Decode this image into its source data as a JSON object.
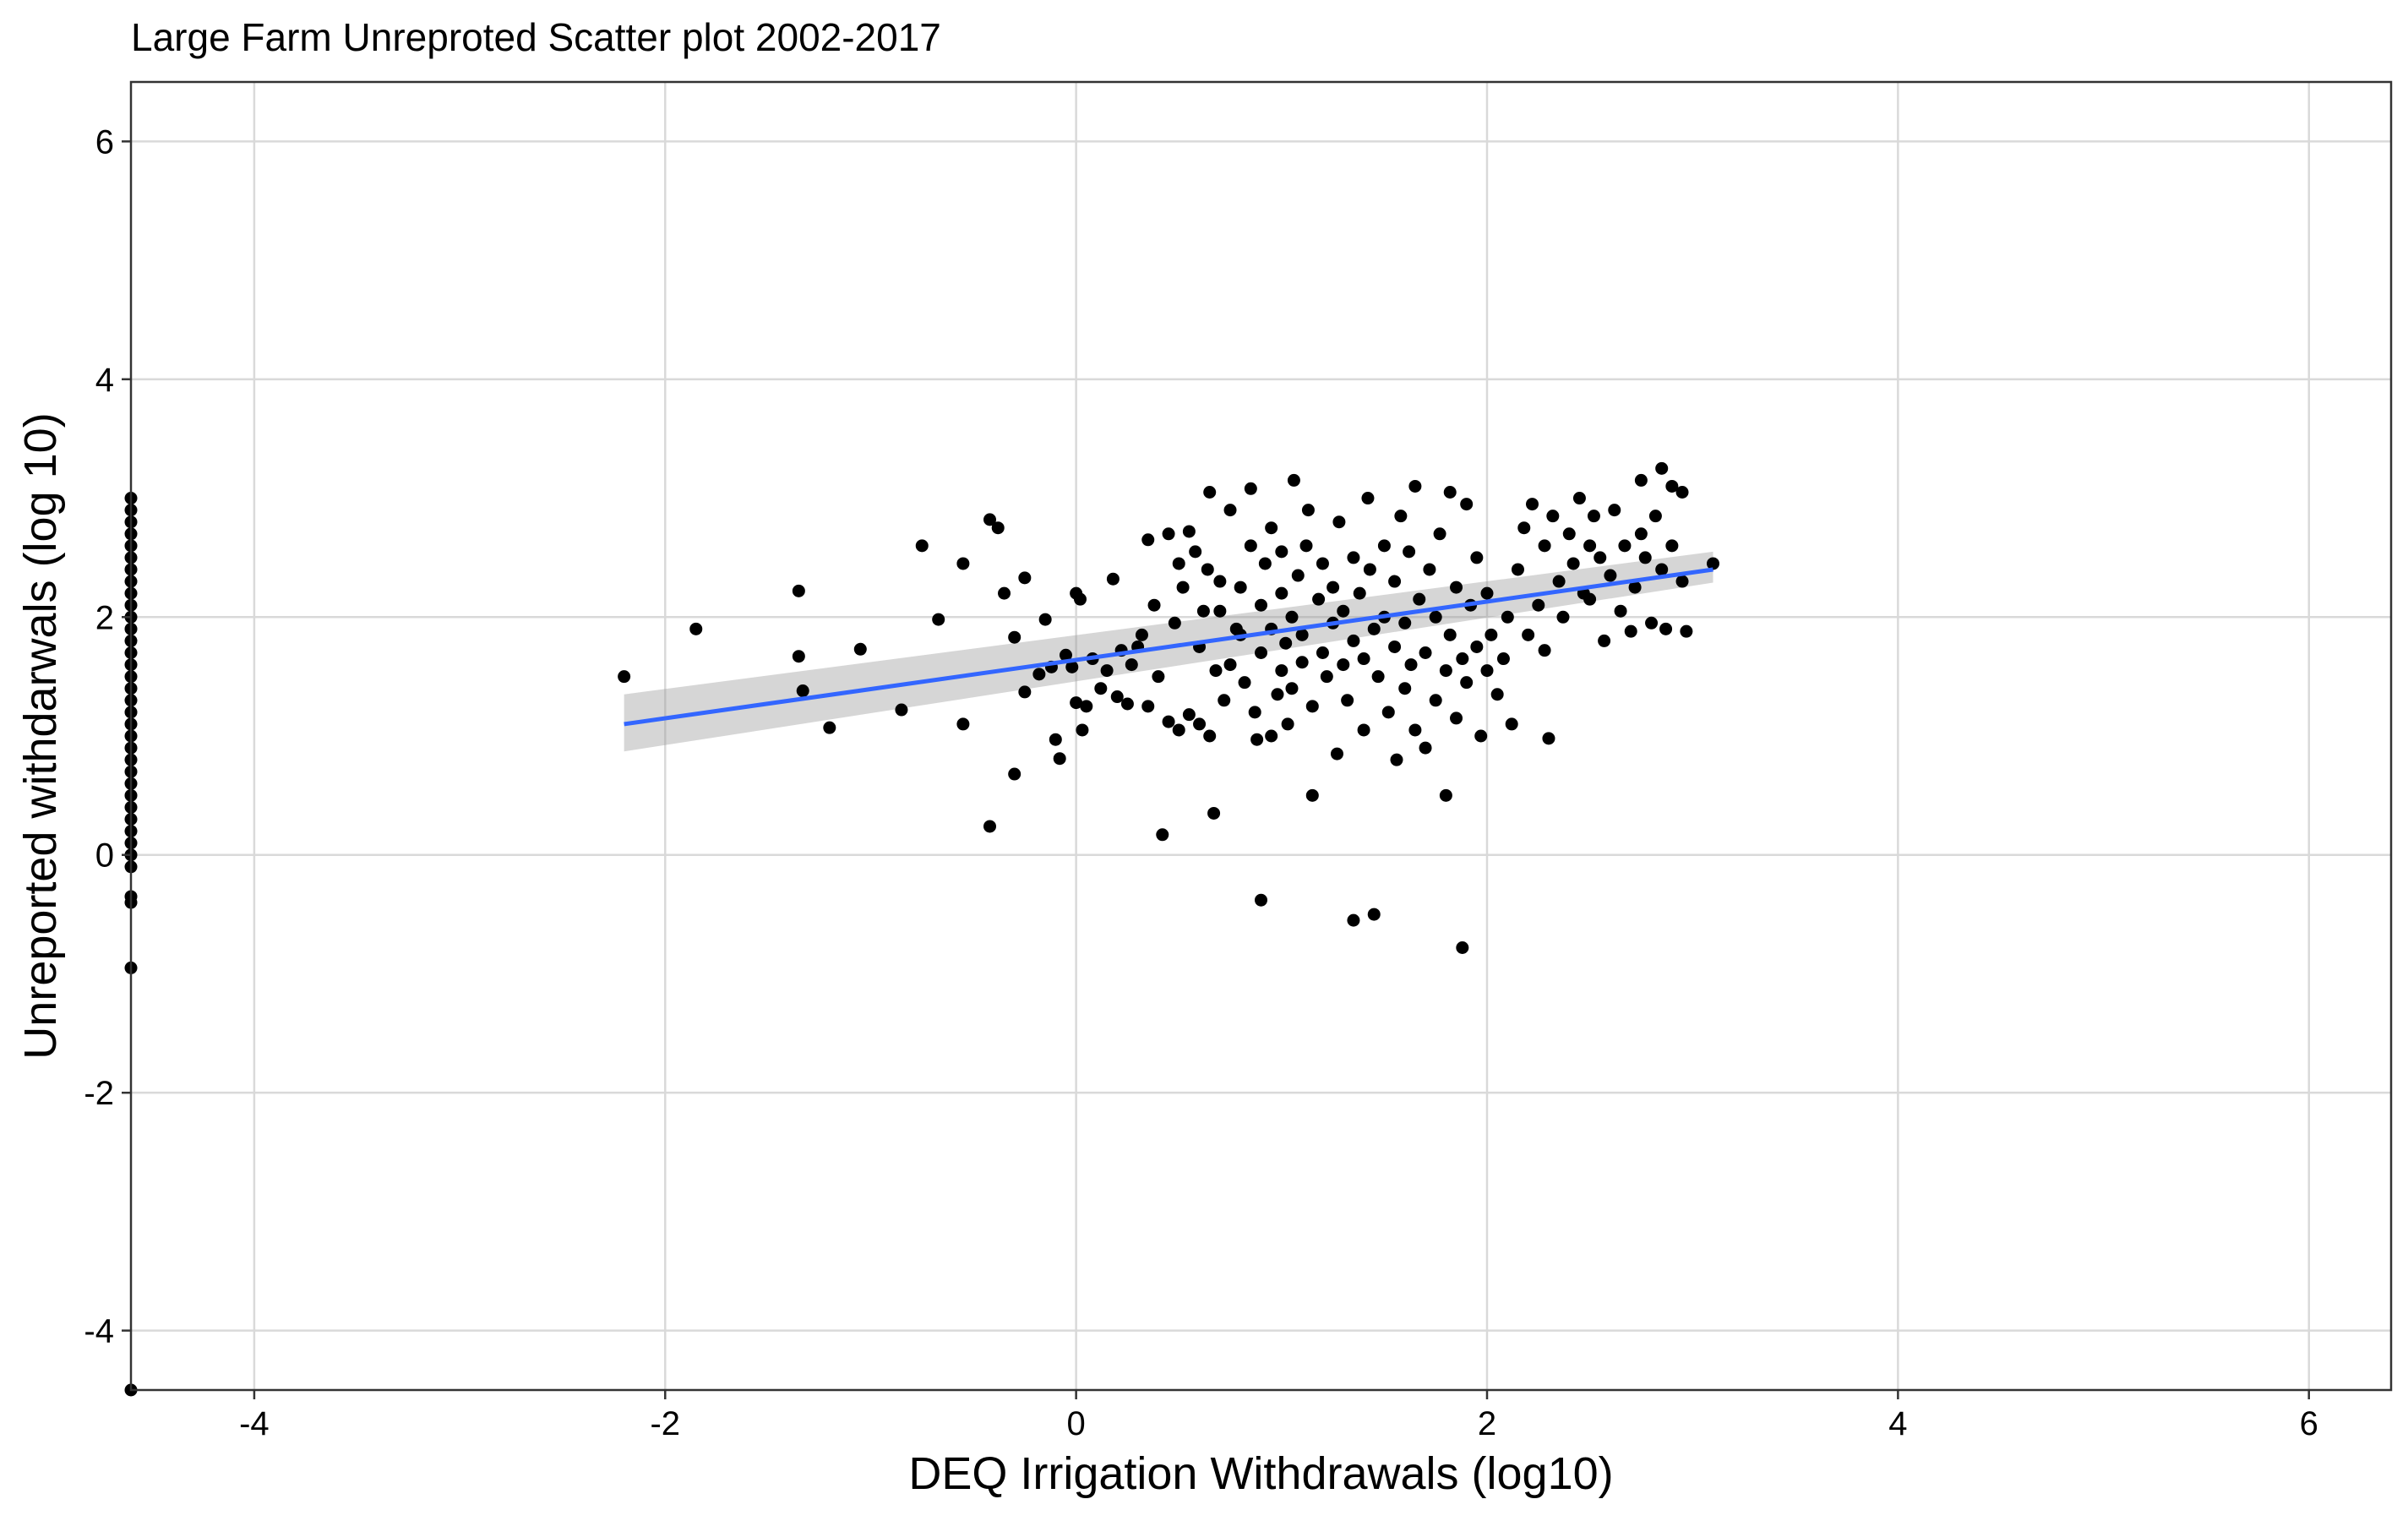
{
  "chart_data": {
    "type": "scatter",
    "title": "Large Farm Unreproted Scatter plot 2002-2017",
    "xlabel": "DEQ Irrigation Withdrawals (log10)",
    "ylabel": "Unreported withdarwals (log 10)",
    "xlim": [
      -4.6,
      6.4
    ],
    "ylim": [
      -4.5,
      6.5
    ],
    "xticks": [
      -4,
      -2,
      0,
      2,
      4,
      6
    ],
    "yticks": [
      -4,
      -2,
      0,
      2,
      4,
      6
    ],
    "xtick_labels": [
      "-4",
      "-2",
      "0",
      "2",
      "4",
      "6"
    ],
    "ytick_labels": [
      "-4",
      "-2",
      "0",
      "2",
      "4",
      "6"
    ],
    "grid": true,
    "legend": "none",
    "colors": {
      "points": "#000000",
      "fit_line": "#3366FF",
      "confidence_band": "#999999",
      "grid": "#d9d9d9",
      "border": "#333333"
    },
    "fit": {
      "method": "linear",
      "x": [
        -2.2,
        3.1
      ],
      "y": [
        1.1,
        2.4
      ],
      "ci_lower": [
        0.87,
        2.29
      ],
      "ci_upper": [
        1.35,
        2.55
      ]
    },
    "points": [
      [
        -4.6,
        3.0
      ],
      [
        -4.6,
        2.9
      ],
      [
        -4.6,
        2.8
      ],
      [
        -4.6,
        2.7
      ],
      [
        -4.6,
        2.6
      ],
      [
        -4.6,
        2.5
      ],
      [
        -4.6,
        2.4
      ],
      [
        -4.6,
        2.3
      ],
      [
        -4.6,
        2.2
      ],
      [
        -4.6,
        2.1
      ],
      [
        -4.6,
        2.0
      ],
      [
        -4.6,
        1.9
      ],
      [
        -4.6,
        1.8
      ],
      [
        -4.6,
        1.7
      ],
      [
        -4.6,
        1.6
      ],
      [
        -4.6,
        1.5
      ],
      [
        -4.6,
        1.4
      ],
      [
        -4.6,
        1.3
      ],
      [
        -4.6,
        1.2
      ],
      [
        -4.6,
        1.1
      ],
      [
        -4.6,
        1.0
      ],
      [
        -4.6,
        0.9
      ],
      [
        -4.6,
        0.8
      ],
      [
        -4.6,
        0.7
      ],
      [
        -4.6,
        0.6
      ],
      [
        -4.6,
        0.5
      ],
      [
        -4.6,
        0.4
      ],
      [
        -4.6,
        0.3
      ],
      [
        -4.6,
        0.2
      ],
      [
        -4.6,
        0.1
      ],
      [
        -4.6,
        0.0
      ],
      [
        -4.6,
        -0.1
      ],
      [
        -4.6,
        -0.35
      ],
      [
        -4.6,
        -0.4
      ],
      [
        -4.6,
        -0.95
      ],
      [
        -4.6,
        -4.5
      ],
      [
        -2.2,
        1.5
      ],
      [
        -1.85,
        1.9
      ],
      [
        -1.35,
        2.22
      ],
      [
        -1.35,
        1.67
      ],
      [
        -1.33,
        1.38
      ],
      [
        -1.2,
        1.07
      ],
      [
        -1.05,
        1.73
      ],
      [
        -0.85,
        1.22
      ],
      [
        -0.75,
        2.6
      ],
      [
        -0.67,
        1.98
      ],
      [
        -0.55,
        1.1
      ],
      [
        -0.55,
        2.45
      ],
      [
        -0.42,
        2.82
      ],
      [
        -0.42,
        0.24
      ],
      [
        -0.38,
        2.75
      ],
      [
        -0.35,
        2.2
      ],
      [
        -0.3,
        1.83
      ],
      [
        -0.3,
        0.68
      ],
      [
        -0.25,
        2.33
      ],
      [
        -0.25,
        1.37
      ],
      [
        -0.18,
        1.52
      ],
      [
        -0.15,
        1.98
      ],
      [
        -0.12,
        1.58
      ],
      [
        -0.1,
        0.97
      ],
      [
        -0.08,
        0.81
      ],
      [
        -0.05,
        1.68
      ],
      [
        -0.02,
        1.58
      ],
      [
        0.0,
        1.28
      ],
      [
        0.0,
        2.2
      ],
      [
        0.02,
        2.15
      ],
      [
        0.03,
        1.05
      ],
      [
        0.05,
        1.25
      ],
      [
        0.08,
        1.65
      ],
      [
        0.12,
        1.4
      ],
      [
        0.15,
        1.55
      ],
      [
        0.18,
        2.32
      ],
      [
        0.2,
        1.33
      ],
      [
        0.22,
        1.72
      ],
      [
        0.25,
        1.27
      ],
      [
        0.27,
        1.6
      ],
      [
        0.3,
        1.75
      ],
      [
        0.32,
        1.85
      ],
      [
        0.35,
        2.65
      ],
      [
        0.35,
        1.25
      ],
      [
        0.38,
        2.1
      ],
      [
        0.4,
        1.5
      ],
      [
        0.42,
        0.17
      ],
      [
        0.45,
        1.12
      ],
      [
        0.45,
        2.7
      ],
      [
        0.48,
        1.95
      ],
      [
        0.5,
        2.45
      ],
      [
        0.5,
        1.05
      ],
      [
        0.52,
        2.25
      ],
      [
        0.55,
        2.72
      ],
      [
        0.55,
        1.18
      ],
      [
        0.58,
        2.55
      ],
      [
        0.6,
        1.1
      ],
      [
        0.6,
        1.75
      ],
      [
        0.62,
        2.05
      ],
      [
        0.64,
        2.4
      ],
      [
        0.65,
        1.0
      ],
      [
        0.65,
        3.05
      ],
      [
        0.67,
        0.35
      ],
      [
        0.68,
        1.55
      ],
      [
        0.7,
        2.3
      ],
      [
        0.7,
        2.05
      ],
      [
        0.72,
        1.3
      ],
      [
        0.75,
        2.9
      ],
      [
        0.75,
        1.6
      ],
      [
        0.78,
        1.9
      ],
      [
        0.8,
        2.25
      ],
      [
        0.8,
        1.85
      ],
      [
        0.82,
        1.45
      ],
      [
        0.85,
        3.08
      ],
      [
        0.85,
        2.6
      ],
      [
        0.87,
        1.2
      ],
      [
        0.88,
        0.97
      ],
      [
        0.9,
        2.1
      ],
      [
        0.9,
        1.7
      ],
      [
        0.9,
        -0.38
      ],
      [
        0.92,
        2.45
      ],
      [
        0.95,
        1.0
      ],
      [
        0.95,
        1.9
      ],
      [
        0.95,
        2.75
      ],
      [
        0.98,
        1.35
      ],
      [
        1.0,
        2.2
      ],
      [
        1.0,
        1.55
      ],
      [
        1.0,
        2.55
      ],
      [
        1.02,
        1.78
      ],
      [
        1.03,
        1.1
      ],
      [
        1.05,
        2.0
      ],
      [
        1.05,
        1.4
      ],
      [
        1.06,
        3.15
      ],
      [
        1.08,
        2.35
      ],
      [
        1.1,
        1.62
      ],
      [
        1.1,
        1.85
      ],
      [
        1.12,
        2.6
      ],
      [
        1.13,
        2.9
      ],
      [
        1.15,
        0.5
      ],
      [
        1.15,
        1.25
      ],
      [
        1.18,
        2.15
      ],
      [
        1.2,
        1.7
      ],
      [
        1.2,
        2.45
      ],
      [
        1.22,
        1.5
      ],
      [
        1.25,
        1.95
      ],
      [
        1.25,
        2.25
      ],
      [
        1.27,
        0.85
      ],
      [
        1.28,
        2.8
      ],
      [
        1.3,
        1.6
      ],
      [
        1.3,
        2.05
      ],
      [
        1.32,
        1.3
      ],
      [
        1.35,
        2.5
      ],
      [
        1.35,
        1.8
      ],
      [
        1.35,
        -0.55
      ],
      [
        1.38,
        2.2
      ],
      [
        1.4,
        1.05
      ],
      [
        1.4,
        1.65
      ],
      [
        1.42,
        3.0
      ],
      [
        1.43,
        2.4
      ],
      [
        1.45,
        -0.5
      ],
      [
        1.45,
        1.9
      ],
      [
        1.47,
        1.5
      ],
      [
        1.5,
        2.6
      ],
      [
        1.5,
        2.0
      ],
      [
        1.52,
        1.2
      ],
      [
        1.55,
        1.75
      ],
      [
        1.55,
        2.3
      ],
      [
        1.56,
        0.8
      ],
      [
        1.58,
        2.85
      ],
      [
        1.6,
        1.4
      ],
      [
        1.6,
        1.95
      ],
      [
        1.62,
        2.55
      ],
      [
        1.63,
        1.6
      ],
      [
        1.65,
        3.1
      ],
      [
        1.65,
        1.05
      ],
      [
        1.67,
        2.15
      ],
      [
        1.7,
        1.7
      ],
      [
        1.7,
        0.9
      ],
      [
        1.72,
        2.4
      ],
      [
        1.75,
        1.3
      ],
      [
        1.75,
        2.0
      ],
      [
        1.77,
        2.7
      ],
      [
        1.8,
        1.55
      ],
      [
        1.8,
        0.5
      ],
      [
        1.82,
        3.05
      ],
      [
        1.82,
        1.85
      ],
      [
        1.85,
        2.25
      ],
      [
        1.85,
        1.15
      ],
      [
        1.88,
        1.65
      ],
      [
        1.88,
        -0.78
      ],
      [
        1.9,
        2.95
      ],
      [
        1.9,
        1.45
      ],
      [
        1.92,
        2.1
      ],
      [
        1.95,
        1.75
      ],
      [
        1.95,
        2.5
      ],
      [
        1.97,
        1.0
      ],
      [
        2.0,
        1.55
      ],
      [
        2.0,
        2.2
      ],
      [
        2.02,
        1.85
      ],
      [
        2.05,
        1.35
      ],
      [
        2.08,
        1.65
      ],
      [
        2.1,
        2.0
      ],
      [
        2.12,
        1.1
      ],
      [
        2.15,
        2.4
      ],
      [
        2.18,
        2.75
      ],
      [
        2.2,
        1.85
      ],
      [
        2.22,
        2.95
      ],
      [
        2.25,
        2.1
      ],
      [
        2.28,
        2.6
      ],
      [
        2.28,
        1.72
      ],
      [
        2.3,
        0.98
      ],
      [
        2.32,
        2.85
      ],
      [
        2.35,
        2.3
      ],
      [
        2.37,
        2.0
      ],
      [
        2.4,
        2.7
      ],
      [
        2.42,
        2.45
      ],
      [
        2.45,
        3.0
      ],
      [
        2.47,
        2.2
      ],
      [
        2.5,
        2.6
      ],
      [
        2.5,
        2.15
      ],
      [
        2.52,
        2.85
      ],
      [
        2.55,
        2.5
      ],
      [
        2.57,
        1.8
      ],
      [
        2.6,
        2.35
      ],
      [
        2.62,
        2.9
      ],
      [
        2.65,
        2.05
      ],
      [
        2.67,
        2.6
      ],
      [
        2.7,
        1.88
      ],
      [
        2.72,
        2.25
      ],
      [
        2.75,
        3.15
      ],
      [
        2.75,
        2.7
      ],
      [
        2.77,
        2.5
      ],
      [
        2.8,
        1.95
      ],
      [
        2.82,
        2.85
      ],
      [
        2.85,
        3.25
      ],
      [
        2.85,
        2.4
      ],
      [
        2.87,
        1.9
      ],
      [
        2.9,
        3.1
      ],
      [
        2.9,
        2.6
      ],
      [
        2.95,
        3.05
      ],
      [
        2.95,
        2.3
      ],
      [
        2.97,
        1.88
      ],
      [
        3.1,
        2.45
      ]
    ]
  }
}
